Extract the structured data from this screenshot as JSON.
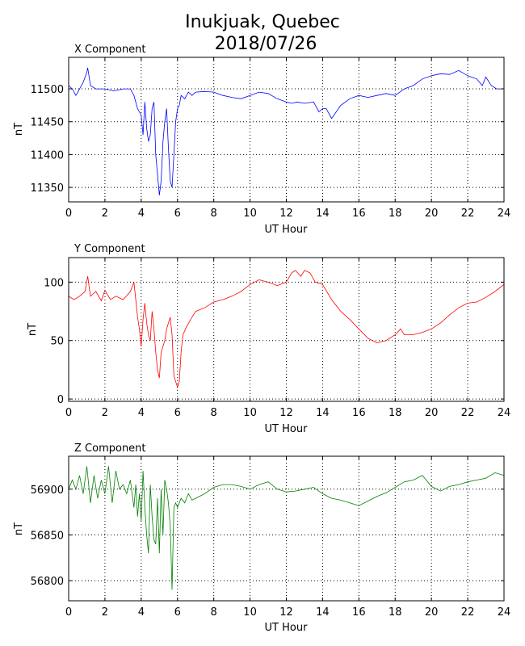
{
  "figure": {
    "title_line1": "Inukjuak, Quebec",
    "title_line2": "2018/07/26"
  },
  "chart_data": [
    {
      "type": "line",
      "title": "X Component",
      "xlabel": "UT Hour",
      "ylabel": "nT",
      "xlim": [
        0,
        24
      ],
      "ylim": [
        11328,
        11548
      ],
      "xticks": [
        0,
        2,
        4,
        6,
        8,
        10,
        12,
        14,
        16,
        18,
        20,
        22,
        24
      ],
      "yticks": [
        11350,
        11400,
        11450,
        11500
      ],
      "grid": true,
      "color": "#0000ff",
      "series": [
        {
          "x": [
            0,
            0.2,
            0.4,
            0.6,
            0.8,
            1.0,
            1.05,
            1.2,
            1.5,
            2.0,
            2.5,
            3.0,
            3.4,
            3.6,
            3.8,
            4.0,
            4.1,
            4.2,
            4.3,
            4.4,
            4.5,
            4.6,
            4.7,
            4.8,
            4.9,
            5.0,
            5.1,
            5.2,
            5.3,
            5.4,
            5.5,
            5.6,
            5.7,
            5.8,
            5.9,
            6.0,
            6.1,
            6.2,
            6.4,
            6.6,
            6.8,
            7.0,
            7.5,
            8.0,
            8.5,
            9.0,
            9.5,
            10.0,
            10.5,
            11.0,
            11.5,
            12.0,
            12.3,
            12.6,
            13.0,
            13.5,
            13.8,
            14.0,
            14.2,
            14.5,
            15.0,
            15.5,
            16.0,
            16.5,
            17.0,
            17.5,
            18.0,
            18.5,
            19.0,
            19.5,
            20.0,
            20.5,
            21.0,
            21.5,
            22.0,
            22.5,
            22.8,
            23.0,
            23.3,
            23.6,
            24.0
          ],
          "y": [
            11505,
            11500,
            11490,
            11500,
            11510,
            11525,
            11532,
            11505,
            11500,
            11500,
            11497,
            11500,
            11500,
            11490,
            11470,
            11460,
            11430,
            11480,
            11440,
            11420,
            11430,
            11470,
            11480,
            11400,
            11370,
            11338,
            11360,
            11420,
            11450,
            11470,
            11410,
            11360,
            11350,
            11400,
            11450,
            11470,
            11475,
            11490,
            11485,
            11495,
            11490,
            11495,
            11496,
            11495,
            11490,
            11487,
            11485,
            11490,
            11495,
            11493,
            11485,
            11480,
            11478,
            11480,
            11478,
            11480,
            11465,
            11470,
            11470,
            11455,
            11475,
            11485,
            11490,
            11487,
            11490,
            11493,
            11490,
            11500,
            11505,
            11515,
            11520,
            11523,
            11522,
            11528,
            11520,
            11515,
            11505,
            11518,
            11505,
            11500,
            11500
          ]
        }
      ]
    },
    {
      "type": "line",
      "title": "Y Component",
      "xlabel": "UT Hour",
      "ylabel": "nT",
      "xlim": [
        0,
        24
      ],
      "ylim": [
        -2,
        121
      ],
      "xticks": [
        0,
        2,
        4,
        6,
        8,
        10,
        12,
        14,
        16,
        18,
        20,
        22,
        24
      ],
      "yticks": [
        0,
        50,
        100
      ],
      "grid": true,
      "color": "#ff0000",
      "series": [
        {
          "x": [
            0,
            0.3,
            0.6,
            0.9,
            1.05,
            1.2,
            1.5,
            1.8,
            2.0,
            2.3,
            2.6,
            3.0,
            3.4,
            3.6,
            3.7,
            3.8,
            3.9,
            4.0,
            4.1,
            4.2,
            4.3,
            4.4,
            4.5,
            4.6,
            4.7,
            4.8,
            4.9,
            5.0,
            5.1,
            5.2,
            5.3,
            5.4,
            5.5,
            5.6,
            5.7,
            5.8,
            5.9,
            6.0,
            6.1,
            6.2,
            6.3,
            6.5,
            6.8,
            7.0,
            7.5,
            8.0,
            8.5,
            9.0,
            9.5,
            10.0,
            10.5,
            11.0,
            11.5,
            12.0,
            12.3,
            12.5,
            12.8,
            13.0,
            13.3,
            13.6,
            14.0,
            14.5,
            15.0,
            15.5,
            16.0,
            16.5,
            17.0,
            17.5,
            18.0,
            18.3,
            18.5,
            19.0,
            19.5,
            20.0,
            20.5,
            21.0,
            21.5,
            22.0,
            22.5,
            23.0,
            23.5,
            24.0
          ],
          "y": [
            88,
            85,
            88,
            92,
            105,
            88,
            92,
            84,
            93,
            85,
            88,
            85,
            92,
            100,
            85,
            70,
            60,
            45,
            68,
            82,
            65,
            55,
            50,
            75,
            60,
            40,
            25,
            18,
            40,
            45,
            50,
            60,
            65,
            70,
            55,
            20,
            15,
            10,
            15,
            40,
            55,
            62,
            70,
            75,
            78,
            83,
            85,
            88,
            92,
            98,
            102,
            100,
            97,
            100,
            108,
            110,
            105,
            110,
            108,
            100,
            98,
            85,
            75,
            68,
            60,
            52,
            48,
            50,
            55,
            60,
            55,
            55,
            57,
            60,
            65,
            72,
            78,
            82,
            83,
            87,
            92,
            98
          ]
        }
      ]
    },
    {
      "type": "line",
      "title": "Z Component",
      "xlabel": "UT Hour",
      "ylabel": "nT",
      "xlim": [
        0,
        24
      ],
      "ylim": [
        56778,
        56936
      ],
      "xticks": [
        0,
        2,
        4,
        6,
        8,
        10,
        12,
        14,
        16,
        18,
        20,
        22,
        24
      ],
      "yticks": [
        56800,
        56850,
        56900
      ],
      "grid": true,
      "color": "#008000",
      "series": [
        {
          "x": [
            0,
            0.2,
            0.4,
            0.6,
            0.8,
            1.0,
            1.2,
            1.4,
            1.6,
            1.8,
            2.0,
            2.2,
            2.4,
            2.6,
            2.8,
            3.0,
            3.2,
            3.4,
            3.6,
            3.7,
            3.8,
            3.9,
            4.0,
            4.1,
            4.2,
            4.3,
            4.4,
            4.5,
            4.6,
            4.7,
            4.8,
            4.9,
            5.0,
            5.1,
            5.2,
            5.3,
            5.4,
            5.5,
            5.6,
            5.7,
            5.8,
            5.9,
            6.0,
            6.2,
            6.4,
            6.6,
            6.8,
            7.0,
            7.5,
            8.0,
            8.5,
            9.0,
            9.5,
            10.0,
            10.5,
            11.0,
            11.5,
            12.0,
            12.5,
            13.0,
            13.5,
            14.0,
            14.5,
            15.0,
            15.5,
            16.0,
            16.5,
            17.0,
            17.5,
            18.0,
            18.5,
            19.0,
            19.5,
            20.0,
            20.5,
            21.0,
            21.5,
            22.0,
            22.5,
            23.0,
            23.5,
            24.0
          ],
          "y": [
            56900,
            56910,
            56900,
            56915,
            56895,
            56925,
            56885,
            56915,
            56890,
            56910,
            56895,
            56925,
            56885,
            56920,
            56900,
            56905,
            56895,
            56910,
            56880,
            56905,
            56870,
            56895,
            56865,
            56920,
            56880,
            56850,
            56830,
            56905,
            56870,
            56845,
            56840,
            56890,
            56830,
            56900,
            56850,
            56910,
            56900,
            56885,
            56860,
            56790,
            56880,
            56885,
            56880,
            56890,
            56885,
            56895,
            56888,
            56890,
            56895,
            56902,
            56905,
            56905,
            56903,
            56900,
            56905,
            56908,
            56900,
            56897,
            56898,
            56900,
            56902,
            56895,
            56890,
            56888,
            56885,
            56882,
            56887,
            56892,
            56896,
            56902,
            56908,
            56910,
            56915,
            56903,
            56898,
            56903,
            56905,
            56908,
            56910,
            56912,
            56918,
            56915
          ]
        }
      ]
    }
  ]
}
